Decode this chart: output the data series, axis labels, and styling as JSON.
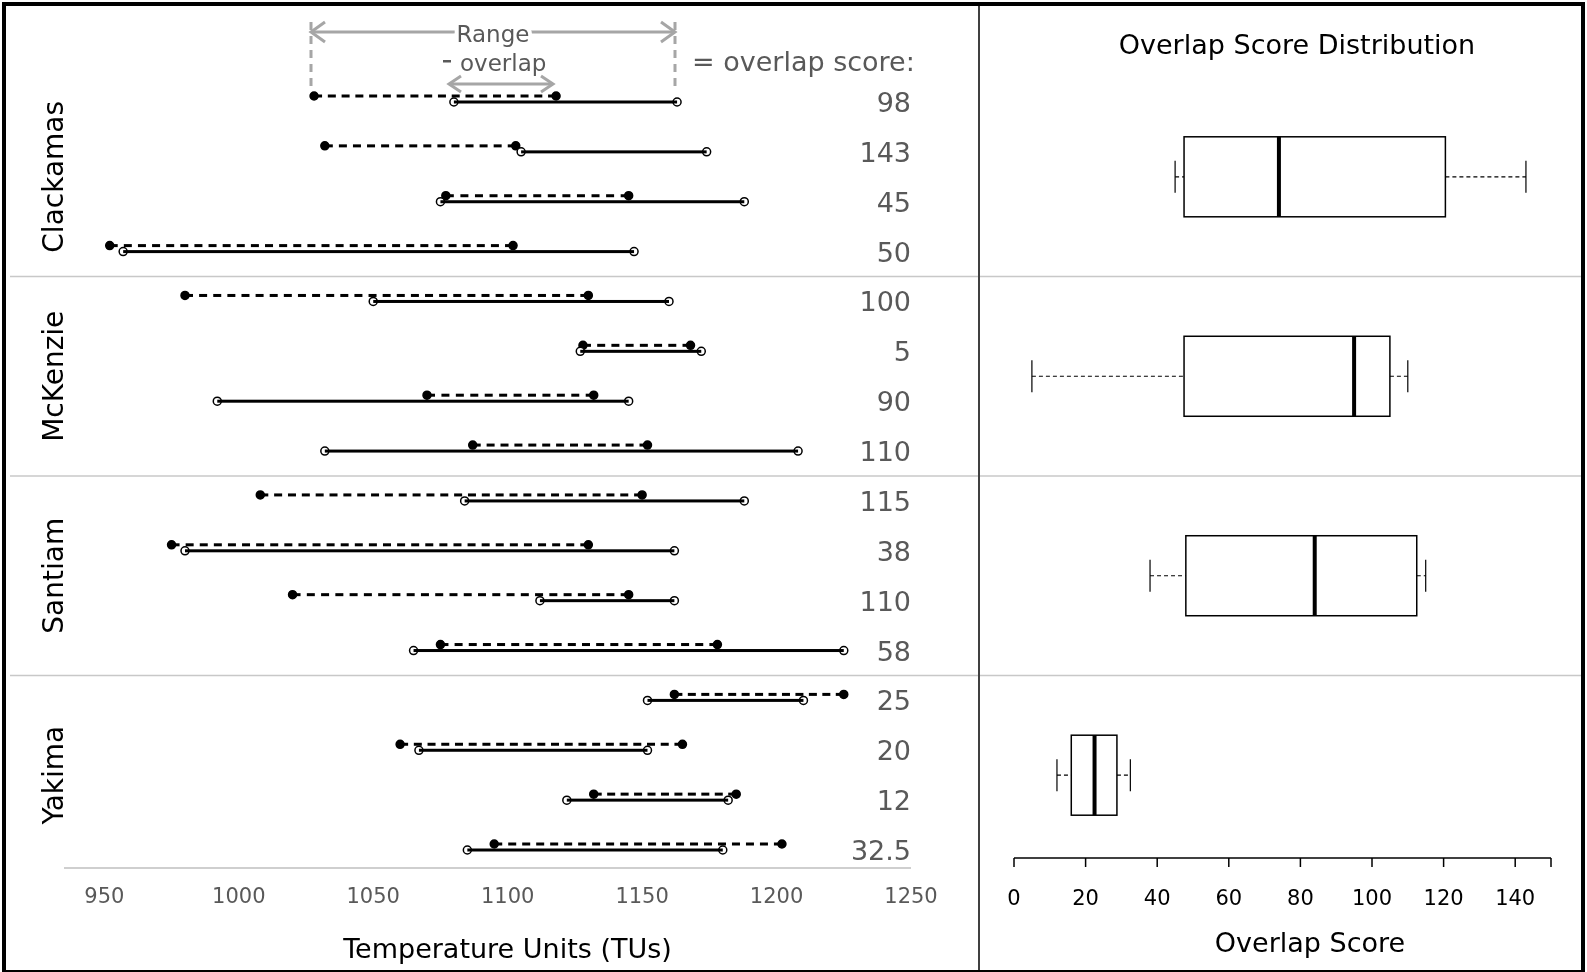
{
  "chart_data": [
    {
      "type": "bar",
      "orientation": "horizontal",
      "xlabel": "Temperature Units (TUs)",
      "xlim": [
        935,
        1250
      ],
      "xticks": [
        950,
        1000,
        1050,
        1100,
        1150,
        1200,
        1250
      ],
      "grid": false,
      "categories": [
        "Clackamas",
        "McKenzie",
        "Santiam",
        "Yakima"
      ],
      "series": [
        {
          "color": "#000000",
          "line_style": "dashed",
          "base": [
            1028,
            980,
            1008,
            1162
          ],
          "values": [
            90,
            150,
            142,
            63
          ]
        },
        {
          "color": "#000000",
          "line_style": "solid",
          "base": [
            1080,
            1050,
            1084,
            1152
          ],
          "values": [
            83,
            110,
            104,
            58
          ]
        },
        {
          "color": "#000000",
          "line_style": "dashed",
          "base": [
            1032,
            1128,
            975,
            1060
          ],
          "values": [
            71,
            40,
            155,
            105
          ]
        },
        {
          "color": "#000000",
          "line_style": "solid",
          "base": [
            1105,
            1127,
            980,
            1067
          ],
          "values": [
            69,
            45,
            182,
            85
          ]
        },
        {
          "color": "#000000",
          "line_style": "dashed",
          "base": [
            1077,
            1070,
            1020,
            1132
          ],
          "values": [
            68,
            62,
            125,
            53
          ]
        },
        {
          "color": "#000000",
          "line_style": "solid",
          "base": [
            1075,
            992,
            1112,
            1122
          ],
          "values": [
            113,
            153,
            50,
            60
          ]
        },
        {
          "color": "#000000",
          "line_style": "dashed",
          "base": [
            952,
            1087,
            1075,
            1095
          ],
          "values": [
            150,
            65,
            103,
            107
          ]
        },
        {
          "color": "#000000",
          "line_style": "solid",
          "base": [
            957,
            1032,
            1065,
            1085
          ],
          "values": [
            190,
            176,
            160,
            95
          ]
        }
      ],
      "annotations": [
        "98",
        "143",
        "45",
        "50",
        "100",
        "5",
        "90",
        "110",
        "115",
        "38",
        "110",
        "58",
        "25",
        "20",
        "12",
        "32.5",
        "Range",
        "overlap",
        "= overlap score:"
      ]
    },
    {
      "type": "box",
      "orientation": "horizontal",
      "title": "Overlap Score Distribution",
      "xlabel": "Overlap Score",
      "xlim": [
        0,
        150
      ],
      "xticks": [
        0,
        20,
        40,
        60,
        80,
        100,
        120,
        140,
        {
          "value": 150,
          "label": null
        }
      ],
      "grid": false,
      "tick_labels": "x",
      "categories": [
        null,
        null,
        null,
        null
      ],
      "boxes": [
        {
          "low": 45,
          "q1": 47.5,
          "median": 74,
          "q3": 120.5,
          "high": 143
        },
        {
          "low": 5,
          "q1": 47.5,
          "median": 95,
          "q3": 105,
          "high": 110
        },
        {
          "low": 38,
          "q1": 48,
          "median": 84,
          "q3": 112.5,
          "high": 115
        },
        {
          "low": 12,
          "q1": 16,
          "median": 22.5,
          "q3": 28.75,
          "high": 32.5
        }
      ]
    }
  ]
}
